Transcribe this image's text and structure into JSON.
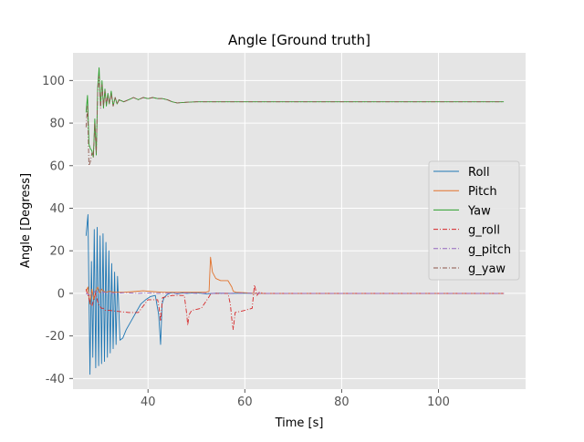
{
  "chart_data": {
    "type": "line",
    "title": "Angle [Ground truth]",
    "xlabel": "Time [s]",
    "ylabel": "Angle [Degress]",
    "xlim": [
      24.5,
      118
    ],
    "ylim": [
      -45,
      113
    ],
    "xticks": [
      40,
      60,
      80,
      100
    ],
    "yticks": [
      -40,
      -20,
      0,
      20,
      40,
      60,
      80,
      100
    ],
    "grid": true,
    "legend_position": "center-right",
    "series": [
      {
        "name": "Roll",
        "color": "#1f77b4",
        "style": "solid",
        "x": [
          27.2,
          27.6,
          28.0,
          28.3,
          28.6,
          28.9,
          29.2,
          29.5,
          29.8,
          30.1,
          30.4,
          30.7,
          31.0,
          31.3,
          31.6,
          31.9,
          32.2,
          32.5,
          32.8,
          33.1,
          33.4,
          33.7,
          34.2,
          34.8,
          35.5,
          36.5,
          37.5,
          38.5,
          39.5,
          40.5,
          41.5,
          42.2,
          42.6,
          42.9,
          43.3,
          44.0,
          45.0,
          46.0,
          47.0,
          48.0,
          50.0,
          52.0,
          54.0,
          57.0,
          60.0,
          62.0,
          64.0,
          70.0,
          80.0,
          90.0,
          100.0,
          113.5
        ],
        "values": [
          27,
          37,
          -38,
          15,
          -30,
          30,
          -35,
          31,
          -34,
          27,
          -33,
          28,
          -32,
          24,
          -30,
          20,
          -28,
          14,
          -26,
          10,
          -24,
          8,
          -22,
          -21,
          -17,
          -13,
          -9,
          -5,
          -3,
          -1.5,
          -1,
          -10,
          -24,
          -5,
          -2,
          -0.5,
          0.5,
          -0.3,
          0.2,
          0,
          0.3,
          -0.2,
          0.1,
          0,
          0.1,
          0,
          0,
          0,
          0,
          0,
          0,
          0
        ]
      },
      {
        "name": "Pitch",
        "color": "#e2722c",
        "style": "solid",
        "x": [
          27.2,
          27.6,
          28.0,
          28.4,
          28.8,
          29.2,
          29.6,
          30.0,
          30.4,
          30.8,
          31.4,
          32.0,
          33.0,
          35.0,
          37.0,
          39.0,
          41.0,
          43.0,
          45.0,
          48.0,
          51.0,
          52.0,
          52.6,
          52.9,
          53.3,
          54.0,
          55.0,
          56.5,
          57.3,
          57.6,
          58.2,
          60.0,
          62.0,
          64.0,
          70.0,
          80.0,
          90.0,
          100.0,
          113.5
        ],
        "values": [
          1,
          3,
          -5,
          2,
          -3,
          1,
          3,
          0,
          2,
          1,
          0.5,
          1,
          0.5,
          0.5,
          0.8,
          1.2,
          0.8,
          0.5,
          0.5,
          0.5,
          0.5,
          0.5,
          1,
          17,
          10,
          7,
          6,
          6,
          3,
          1,
          0.5,
          0.3,
          0,
          0,
          0,
          0,
          0,
          0,
          0
        ]
      },
      {
        "name": "Yaw",
        "color": "#2ca02c",
        "style": "solid",
        "x": [
          27.2,
          27.5,
          27.8,
          28.1,
          28.4,
          28.7,
          29.0,
          29.3,
          29.6,
          29.9,
          30.2,
          30.5,
          30.8,
          31.1,
          31.4,
          31.7,
          32.0,
          32.4,
          32.8,
          33.2,
          33.6,
          34.0,
          35.0,
          36.0,
          37.0,
          38.0,
          39.0,
          40.0,
          41.0,
          42.0,
          43.0,
          44.0,
          45.0,
          46.0,
          48.0,
          50.0,
          55.0,
          60.0,
          70.0,
          80.0,
          90.0,
          100.0,
          113.5
        ],
        "values": [
          85,
          93,
          70,
          68,
          67,
          64,
          82,
          65,
          97,
          106,
          88,
          100,
          87,
          96,
          88,
          94,
          89,
          95,
          88,
          92,
          89,
          91,
          90,
          91,
          92,
          91,
          92,
          91.5,
          92,
          91.5,
          91.5,
          91,
          90,
          89.5,
          89.8,
          90,
          90,
          90,
          90,
          90,
          90,
          90,
          90
        ]
      },
      {
        "name": "g_roll",
        "color": "#d62728",
        "style": "dashdot",
        "x": [
          27.2,
          27.6,
          28.0,
          28.4,
          28.8,
          29.2,
          29.6,
          30.0,
          30.4,
          30.8,
          31.2,
          32.0,
          34.0,
          36.0,
          38.0,
          39.0,
          40.0,
          42.0,
          42.3,
          42.6,
          43.0,
          45.0,
          47.5,
          48.0,
          48.2,
          48.5,
          49.0,
          51.0,
          52.5,
          53.0,
          54.0,
          55.0,
          56.5,
          57.0,
          57.3,
          57.6,
          58.0,
          60.0,
          61.5,
          62.0,
          62.5,
          63.0,
          64.0,
          70.0,
          80.0,
          90.0,
          100.0,
          113.5
        ],
        "values": [
          2,
          -1,
          -4,
          -6,
          -3,
          0,
          -4,
          -6,
          -7,
          -7,
          -8,
          -8,
          -8.5,
          -9,
          -9,
          -6,
          -3,
          -3,
          -7,
          -13,
          -2,
          -1,
          -1,
          -10,
          -15,
          -10,
          -8,
          -7,
          -2,
          0,
          0,
          0,
          0,
          -5,
          -12,
          -17,
          -9,
          -8,
          -7,
          4,
          -1,
          0.5,
          0,
          0,
          0,
          0,
          0,
          0
        ]
      },
      {
        "name": "g_pitch",
        "color": "#9467bd",
        "style": "dashdot",
        "x": [
          27.2,
          28.0,
          29.0,
          30.0,
          31.0,
          33.0,
          35.0,
          38.0,
          40.0,
          42.0,
          44.0,
          46.0,
          48.0,
          50.0,
          52.0,
          54.0,
          56.0,
          58.0,
          60.0,
          62.0,
          64.0,
          70.0,
          80.0,
          90.0,
          100.0,
          113.5
        ],
        "values": [
          0,
          -1,
          1,
          0,
          0.5,
          0,
          0.3,
          0,
          0.2,
          0,
          0.1,
          0,
          0.2,
          0,
          0.1,
          0,
          0.1,
          0,
          0.2,
          0,
          0,
          0,
          0,
          0,
          0,
          0
        ]
      },
      {
        "name": "g_yaw",
        "color": "#8c564b",
        "style": "dashdot",
        "x": [
          27.2,
          27.5,
          27.8,
          28.1,
          28.4,
          28.7,
          29.0,
          29.3,
          29.6,
          29.9,
          30.2,
          30.5,
          30.8,
          31.1,
          31.4,
          31.7,
          32.0,
          32.4,
          32.8,
          33.2,
          33.6,
          34.0,
          35.0,
          36.0,
          37.0,
          38.0,
          39.0,
          40.0,
          41.0,
          42.0,
          43.0,
          44.0,
          45.0,
          46.0,
          48.0,
          50.0,
          55.0,
          60.0,
          70.0,
          80.0,
          90.0,
          100.0,
          113.5
        ],
        "values": [
          78,
          88,
          60,
          62,
          66,
          64,
          80,
          66,
          95,
          102,
          87,
          98,
          88,
          95,
          89,
          93,
          89,
          94,
          88,
          92,
          89,
          91,
          90,
          91,
          92,
          91,
          92,
          91.5,
          92,
          91.5,
          91.5,
          91,
          90,
          89.5,
          89.8,
          90,
          90,
          90,
          90,
          90,
          90,
          90,
          90
        ]
      }
    ]
  }
}
